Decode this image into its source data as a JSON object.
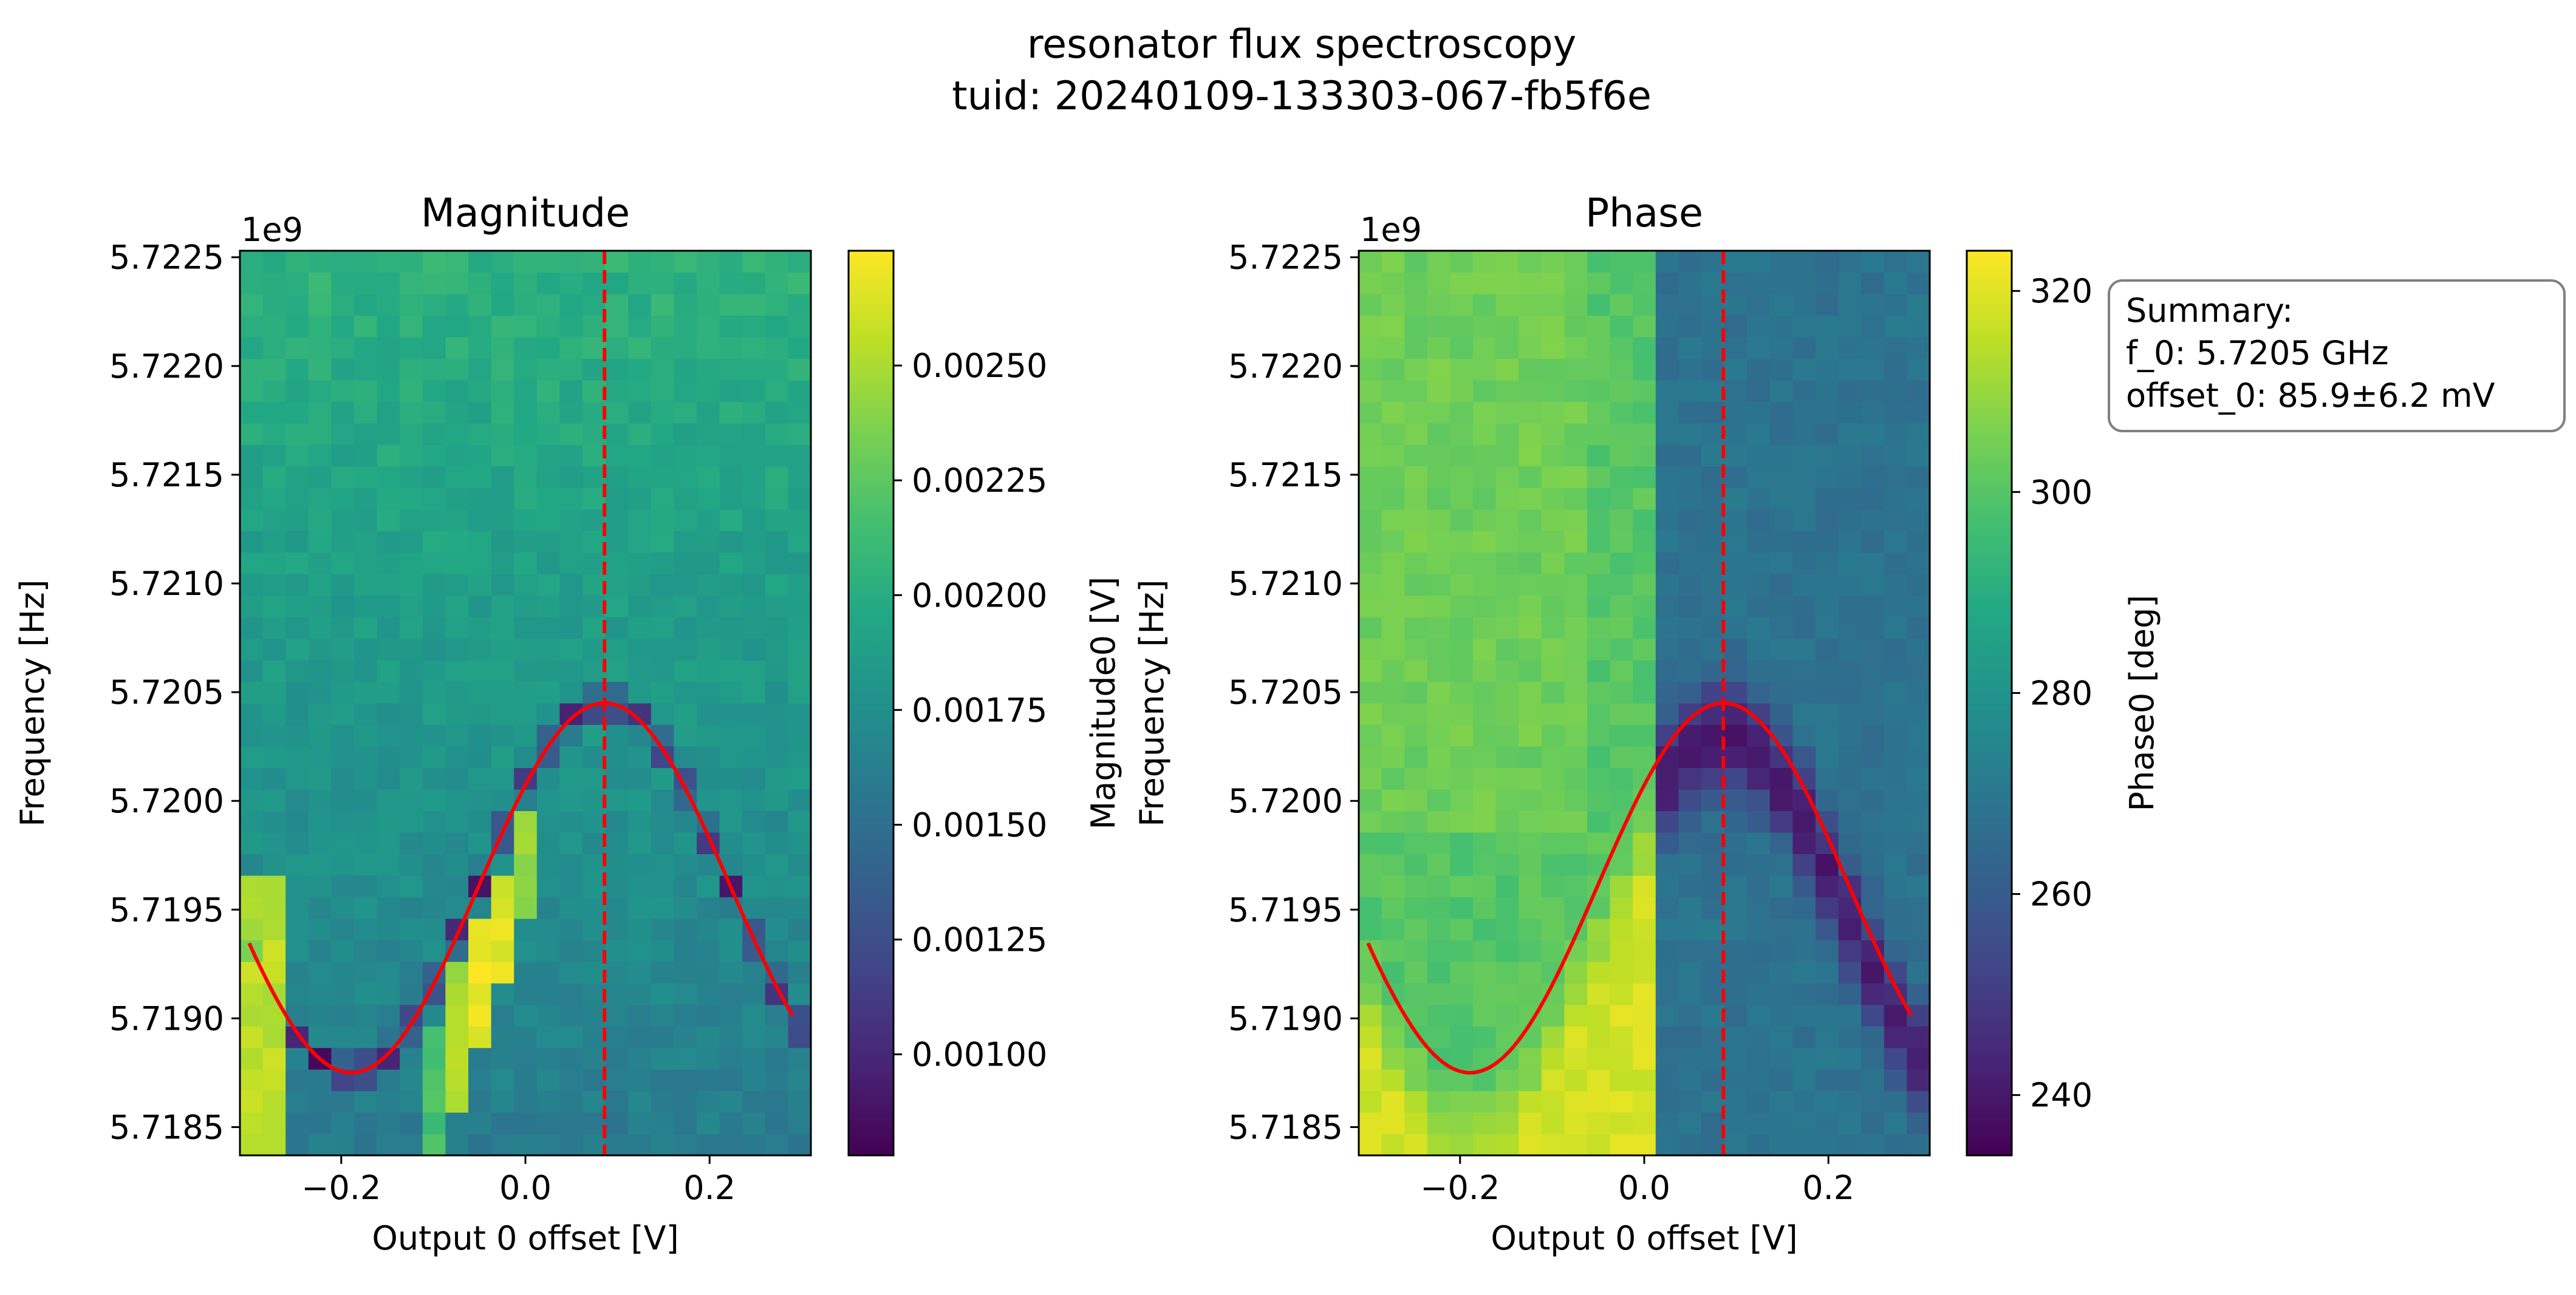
{
  "figure": {
    "title": "resonator flux spectroscopy",
    "subtitle": "tuid: 20240109-133303-067-fb5f6e"
  },
  "summary": {
    "lines": [
      "Summary:",
      "f_0: 5.7205 GHz",
      "offset_0: 85.9±6.2 mV"
    ]
  },
  "chart_data": [
    {
      "type": "heatmap",
      "title": "Magnitude",
      "xlabel": "Output 0 offset [V]",
      "ylabel": "Frequency [Hz]",
      "y_offset_text": "1e9",
      "xlim": [
        -0.31,
        0.31
      ],
      "ylim": [
        5.71837,
        5.72253
      ],
      "x_ticks": [
        -0.2,
        0.0,
        0.2
      ],
      "x_tick_labels": [
        "−0.2",
        "0.0",
        "0.2"
      ],
      "y_ticks": [
        5.7185,
        5.719,
        5.7195,
        5.72,
        5.7205,
        5.721,
        5.7215,
        5.722,
        5.7225
      ],
      "y_tick_labels": [
        "5.7185",
        "5.7190",
        "5.7195",
        "5.7200",
        "5.7205",
        "5.7210",
        "5.7215",
        "5.7220",
        "5.7225"
      ],
      "colormap": "viridis",
      "colorbar": {
        "label": "Magnitude0 [V]",
        "range": [
          0.00078,
          0.00275
        ],
        "ticks": [
          0.001,
          0.00125,
          0.0015,
          0.00175,
          0.002,
          0.00225,
          0.0025
        ],
        "tick_labels": [
          "0.00100",
          "0.00125",
          "0.00150",
          "0.00175",
          "0.00200",
          "0.00225",
          "0.00250"
        ]
      },
      "heatmap": {
        "x_range": [
          -0.31,
          0.31
        ],
        "y_range": [
          5.71837,
          5.72253
        ],
        "n_cols": 25,
        "n_rows": 42,
        "model": {
          "background_top": 0.00205,
          "background_bottom": 0.0016,
          "dip_value": 0.00085,
          "peak_value": 0.0027,
          "dip_width_hz": 110000,
          "peak_band": [
            0.00015,
            0.0006
          ],
          "noise": 8e-05
        }
      },
      "fit_curve": {
        "name": "fit",
        "color": "#ff0000",
        "f_max": 5.72045,
        "f_min": 5.71875,
        "x_peak": 0.0859,
        "period": 0.55,
        "x_range": [
          -0.3,
          0.29
        ]
      },
      "vline": {
        "x": 0.0859,
        "color": "#ff0000",
        "style": "dashed"
      }
    },
    {
      "type": "heatmap",
      "title": "Phase",
      "xlabel": "Output 0 offset [V]",
      "ylabel": "Frequency [Hz]",
      "y_offset_text": "1e9",
      "xlim": [
        -0.31,
        0.31
      ],
      "ylim": [
        5.71837,
        5.72253
      ],
      "x_ticks": [
        -0.2,
        0.0,
        0.2
      ],
      "x_tick_labels": [
        "−0.2",
        "0.0",
        "0.2"
      ],
      "y_ticks": [
        5.7185,
        5.719,
        5.7195,
        5.72,
        5.7205,
        5.721,
        5.7215,
        5.722,
        5.7225
      ],
      "y_tick_labels": [
        "5.7185",
        "5.7190",
        "5.7195",
        "5.7200",
        "5.7205",
        "5.7210",
        "5.7215",
        "5.7220",
        "5.7225"
      ],
      "colormap": "viridis",
      "colorbar": {
        "label": "Phase0 [deg]",
        "range": [
          234,
          324
        ],
        "ticks": [
          240,
          260,
          280,
          300,
          320
        ],
        "tick_labels": [
          "240",
          "260",
          "280",
          "300",
          "320"
        ]
      },
      "heatmap": {
        "x_range": [
          -0.31,
          0.31
        ],
        "y_range": [
          5.71837,
          5.72253
        ],
        "n_cols": 25,
        "n_rows": 42,
        "model": {
          "left_value": 300,
          "right_value": 268,
          "jump_x": 0.01,
          "yellow_value": 318,
          "dark_value": 240,
          "noise": 3
        }
      },
      "fit_curve": {
        "name": "fit",
        "color": "#ff0000",
        "f_max": 5.72045,
        "f_min": 5.71875,
        "x_peak": 0.0859,
        "period": 0.55,
        "x_range": [
          -0.3,
          0.29
        ]
      },
      "vline": {
        "x": 0.0859,
        "color": "#ff0000",
        "style": "dashed"
      }
    }
  ]
}
